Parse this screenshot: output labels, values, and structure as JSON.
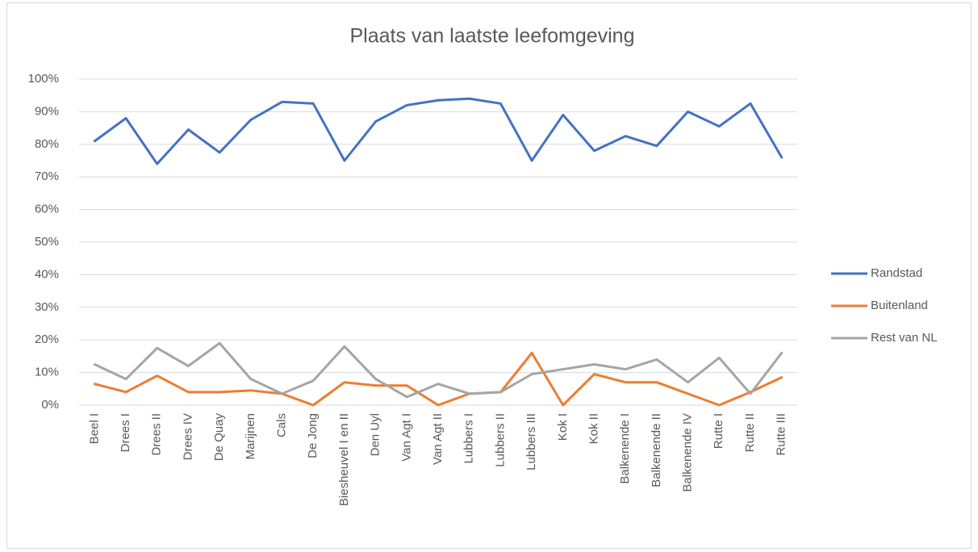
{
  "chart_data": {
    "type": "line",
    "title": "Plaats van laatste leefomgeving",
    "categories": [
      "Beel I",
      "Drees I",
      "Drees II",
      "Drees IV",
      "De Quay",
      "Marijnen",
      "Cals",
      "De Jong",
      "Biesheuvel I en II",
      "Den Uyl",
      "Van Agt I",
      "Van Agt II",
      "Lubbers I",
      "Lubbers II",
      "Lubbers III",
      "Kok I",
      "Kok II",
      "Balkenende I",
      "Balkenende II",
      "Balkenende IV",
      "Rutte I",
      "Rutte II",
      "Rutte III"
    ],
    "series": [
      {
        "name": "Randstad",
        "color": "#4472c4",
        "values": [
          81,
          88,
          74,
          84.5,
          77.5,
          87.5,
          93,
          92.5,
          75,
          87,
          92,
          93.5,
          94,
          92.5,
          75,
          89,
          78,
          82.5,
          79.5,
          90,
          85.5,
          92.5,
          76
        ]
      },
      {
        "name": "Buitenland",
        "color": "#ed7d31",
        "values": [
          6.5,
          4,
          9,
          4,
          4,
          4.5,
          3.5,
          0,
          7,
          6,
          6,
          0,
          3.5,
          4,
          16,
          0,
          9.5,
          7,
          7,
          3.5,
          0,
          4,
          8.5
        ]
      },
      {
        "name": "Rest van NL",
        "color": "#a5a5a5",
        "values": [
          12.5,
          8,
          17.5,
          12,
          19,
          8,
          3.5,
          7.5,
          18,
          8,
          2.5,
          6.5,
          3.5,
          4,
          9.5,
          11,
          12.5,
          11,
          14,
          7,
          14.5,
          3.5,
          16
        ]
      }
    ],
    "ylim": [
      0,
      100
    ],
    "yticks": [
      {
        "value": 0,
        "label": "0%"
      },
      {
        "value": 10,
        "label": "10%"
      },
      {
        "value": 20,
        "label": "20%"
      },
      {
        "value": 30,
        "label": "30%"
      },
      {
        "value": 40,
        "label": "40%"
      },
      {
        "value": 50,
        "label": "50%"
      },
      {
        "value": 60,
        "label": "60%"
      },
      {
        "value": 70,
        "label": "70%"
      },
      {
        "value": 80,
        "label": "80%"
      },
      {
        "value": 90,
        "label": "90%"
      },
      {
        "value": 100,
        "label": "100%"
      }
    ],
    "grid": true,
    "legend": "right"
  }
}
